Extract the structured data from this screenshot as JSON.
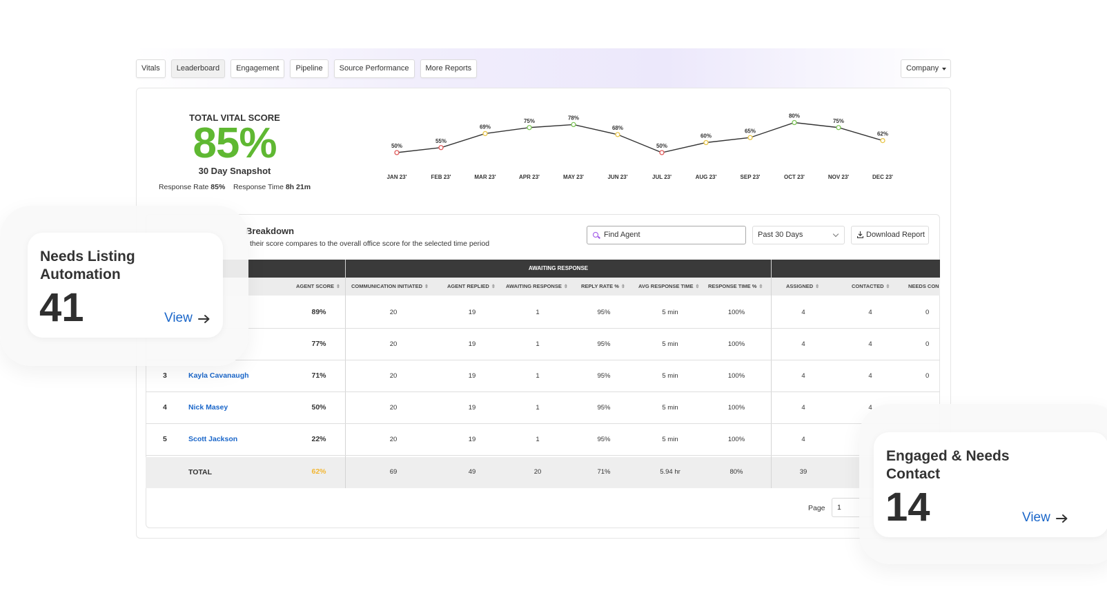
{
  "tabs": [
    "Vitals",
    "Leaderboard",
    "Engagement",
    "Pipeline",
    "Source Performance",
    "More Reports"
  ],
  "scope_select": "Company",
  "vital": {
    "title": "TOTAL VITAL SCORE",
    "score": "85%",
    "subtitle": "30 Day Snapshot",
    "response_rate_label": "Response Rate",
    "response_rate": "85%",
    "response_time_label": "Response Time",
    "response_time": "8h 21m"
  },
  "chart_data": {
    "type": "line",
    "categories": [
      "JAN 23'",
      "FEB 23'",
      "MAR 23'",
      "APR 23'",
      "MAY 23'",
      "JUN 23'",
      "JUL 23'",
      "AUG 23'",
      "SEP 23'",
      "OCT 23'",
      "NOV 23'",
      "DEC 23'"
    ],
    "series": [
      {
        "values": [
          50,
          55,
          69,
          75,
          78,
          68,
          50,
          60,
          65,
          80,
          75,
          62
        ]
      }
    ],
    "value_labels": [
      "50%",
      "55%",
      "69%",
      "75%",
      "78%",
      "68%",
      "50%",
      "60%",
      "65%",
      "80%",
      "75%",
      "62%"
    ],
    "point_colors": {
      "low": "#e05a5a",
      "mid": "#e8c547",
      "high": "#7cc456"
    },
    "grid": false,
    "title": "",
    "xlabel": "",
    "ylabel": ""
  },
  "breakdown": {
    "title_visible": "Breakdown",
    "description_visible": "their score compares to the overall office score for the selected time period",
    "search_placeholder": "Find Agent",
    "period": "Past 30 Days",
    "download": "Download Report"
  },
  "table": {
    "group_header": "AWAITING RESPONSE",
    "columns": [
      "AGENT SCORE",
      "COMMUNICATION INITIATED",
      "AGENT REPLIED",
      "AWAITING RESPONSE",
      "REPLY RATE %",
      "AVG RESPONSE TIME",
      "RESPONSE TIME %",
      "ASSIGNED",
      "CONTACTED",
      "NEEDS CON"
    ],
    "rows": [
      {
        "rank": "",
        "agent": "",
        "score": "89%",
        "initiated": "20",
        "replied": "19",
        "awaiting": "1",
        "reply_rate": "95%",
        "avg_time": "5 min",
        "time_pct": "100%",
        "assigned": "4",
        "contacted": "4",
        "needs": "0"
      },
      {
        "rank": "",
        "agent": "",
        "score": "77%",
        "initiated": "20",
        "replied": "19",
        "awaiting": "1",
        "reply_rate": "95%",
        "avg_time": "5 min",
        "time_pct": "100%",
        "assigned": "4",
        "contacted": "4",
        "needs": "0"
      },
      {
        "rank": "3",
        "agent": "Kayla Cavanaugh",
        "score": "71%",
        "initiated": "20",
        "replied": "19",
        "awaiting": "1",
        "reply_rate": "95%",
        "avg_time": "5 min",
        "time_pct": "100%",
        "assigned": "4",
        "contacted": "4",
        "needs": "0"
      },
      {
        "rank": "4",
        "agent": "Nick Masey",
        "score": "50%",
        "initiated": "20",
        "replied": "19",
        "awaiting": "1",
        "reply_rate": "95%",
        "avg_time": "5 min",
        "time_pct": "100%",
        "assigned": "4",
        "contacted": "4",
        "needs": ""
      },
      {
        "rank": "5",
        "agent": "Scott Jackson",
        "score": "22%",
        "initiated": "20",
        "replied": "19",
        "awaiting": "1",
        "reply_rate": "95%",
        "avg_time": "5 min",
        "time_pct": "100%",
        "assigned": "4",
        "contacted": "",
        "needs": ""
      }
    ],
    "total": {
      "label": "TOTAL",
      "score": "62%",
      "initiated": "69",
      "replied": "49",
      "awaiting": "20",
      "reply_rate": "71%",
      "avg_time": "5.94 hr",
      "time_pct": "80%",
      "assigned": "39"
    },
    "total_score_color": "#f2b632",
    "page_label": "Page",
    "page_value": "1"
  },
  "cards": [
    {
      "title": "Needs Listing Automation",
      "count": "41",
      "link": "View"
    },
    {
      "title": "Engaged & Needs Contact",
      "count": "14",
      "link": "View"
    }
  ],
  "colors": {
    "accent_green": "#5fb832",
    "link_blue": "#1a66c9",
    "header_dark": "#3a3a3a"
  }
}
